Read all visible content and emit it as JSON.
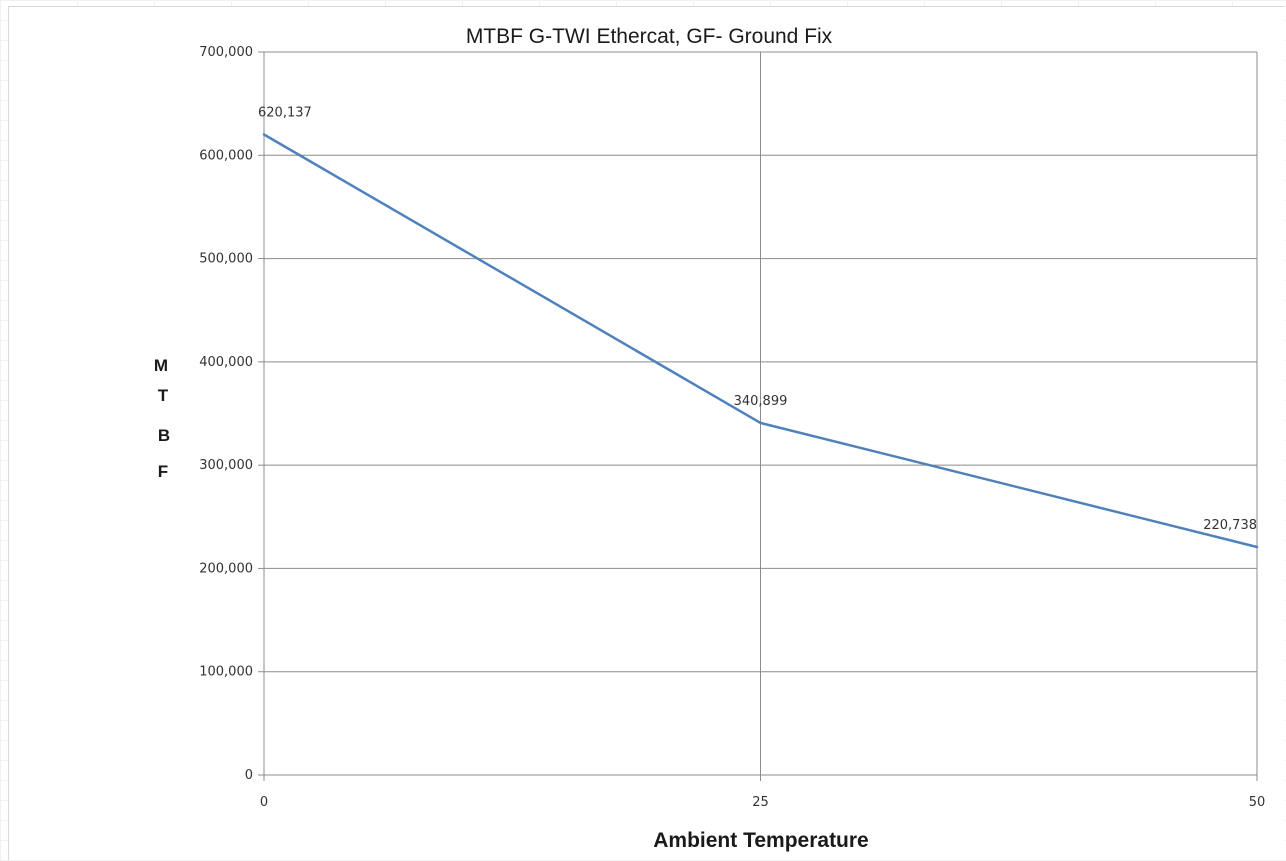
{
  "chart_data": {
    "type": "line",
    "title": "MTBF G-TWI Ethercat, GF- Ground Fix",
    "xlabel": "Ambient Temperature",
    "ylabel": [
      "M",
      "T",
      "B",
      "F"
    ],
    "x": [
      0,
      25,
      50
    ],
    "x_ticks": [
      "0",
      "25",
      "50"
    ],
    "y_ticks": [
      "0",
      "100,000",
      "200,000",
      "300,000",
      "400,000",
      "500,000",
      "600,000",
      "700,000"
    ],
    "ylim": [
      0,
      700000
    ],
    "xlim": [
      0,
      50
    ],
    "grid": true,
    "series": [
      {
        "values": [
          620137,
          340899,
          220738
        ],
        "data_labels": [
          "620,137",
          "340,899",
          "220,738"
        ],
        "color": "#4f81bd"
      }
    ]
  },
  "colors": {
    "line": "#4f81bd",
    "grid": "#8c8c8c",
    "axis": "#8c8c8c"
  }
}
